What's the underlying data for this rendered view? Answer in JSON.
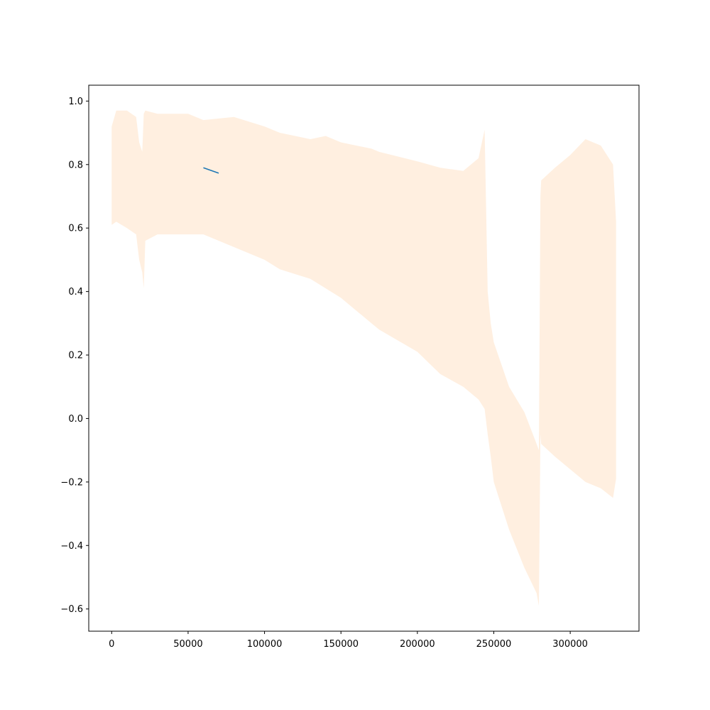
{
  "chart_data": {
    "type": "line",
    "title": "",
    "xlabel": "",
    "ylabel": "",
    "xlim": [
      -15000,
      345000
    ],
    "ylim": [
      -0.67,
      1.05
    ],
    "grid": false,
    "legend": "none",
    "x_ticks": [
      0,
      50000,
      100000,
      150000,
      200000,
      250000,
      300000
    ],
    "x_tick_labels": [
      "0",
      "50000",
      "100000",
      "150000",
      "200000",
      "250000",
      "300000"
    ],
    "y_ticks": [
      1.0,
      0.8,
      0.6,
      0.4,
      0.2,
      0.0,
      -0.2,
      -0.4,
      -0.6
    ],
    "y_tick_labels": [
      "1.0",
      "0.8",
      "0.6",
      "0.4",
      "0.2",
      "0.0",
      "−0.2",
      "−0.4",
      "−0.6"
    ],
    "colors": {
      "line": "#1f77b4",
      "band": "#ffe4cc"
    },
    "series": [
      {
        "style": "line",
        "x": [
          60000,
          70000
        ],
        "y": [
          0.79,
          0.773
        ]
      },
      {
        "style": "band",
        "x": [
          0,
          3000,
          10000,
          16000,
          18000,
          20000,
          21000,
          22000,
          30000,
          50000,
          60000,
          80000,
          100000,
          110000,
          130000,
          140000,
          150000,
          160000,
          170000,
          175000,
          200000,
          215000,
          230000,
          240000,
          244000,
          246000,
          248000,
          250000,
          260000,
          270000,
          278000,
          279500,
          280500,
          281000,
          290000,
          300000,
          310000,
          320000,
          328000,
          330000
        ],
        "upper": [
          0.92,
          0.97,
          0.97,
          0.95,
          0.87,
          0.84,
          0.96,
          0.97,
          0.96,
          0.96,
          0.94,
          0.95,
          0.92,
          0.9,
          0.88,
          0.89,
          0.87,
          0.86,
          0.85,
          0.84,
          0.81,
          0.79,
          0.78,
          0.82,
          0.91,
          0.4,
          0.3,
          0.24,
          0.1,
          0.02,
          -0.08,
          -0.1,
          0.7,
          0.75,
          0.79,
          0.83,
          0.88,
          0.86,
          0.8,
          0.62
        ],
        "lower": [
          0.61,
          0.62,
          0.6,
          0.58,
          0.5,
          0.46,
          0.41,
          0.56,
          0.58,
          0.58,
          0.58,
          0.54,
          0.5,
          0.47,
          0.44,
          0.41,
          0.38,
          0.34,
          0.3,
          0.28,
          0.21,
          0.14,
          0.1,
          0.06,
          0.03,
          -0.05,
          -0.12,
          -0.2,
          -0.35,
          -0.47,
          -0.55,
          -0.59,
          -0.05,
          -0.08,
          -0.12,
          -0.16,
          -0.2,
          -0.22,
          -0.25,
          -0.19
        ]
      }
    ]
  }
}
